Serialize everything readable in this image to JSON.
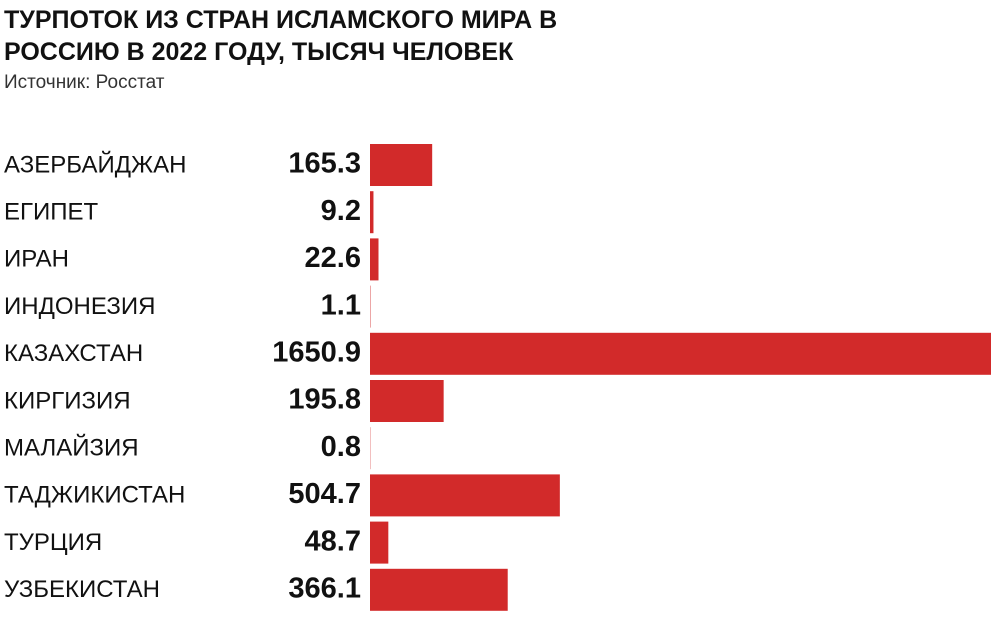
{
  "chart_data": {
    "type": "bar",
    "orientation": "horizontal",
    "title": "ТУРПОТОК ИЗ СТРАН ИСЛАМСКОГО МИРА В РОССИЮ В 2022 ГОДУ, ТЫСЯЧ ЧЕЛОВЕК",
    "subtitle": "Источник: Росстат",
    "categories": [
      "АЗЕРБАЙДЖАН",
      "ЕГИПЕТ",
      "ИРАН",
      "ИНДОНЕЗИЯ",
      "КАЗАХСТАН",
      "КИРГИЗИЯ",
      "МАЛАЙЗИЯ",
      "ТАДЖИКИСТАН",
      "ТУРЦИЯ",
      "УЗБЕКИСТАН"
    ],
    "values": [
      165.3,
      9.2,
      22.6,
      1.1,
      1650.9,
      195.8,
      0.8,
      504.7,
      48.7,
      366.1
    ],
    "color": "#d22a2a"
  }
}
